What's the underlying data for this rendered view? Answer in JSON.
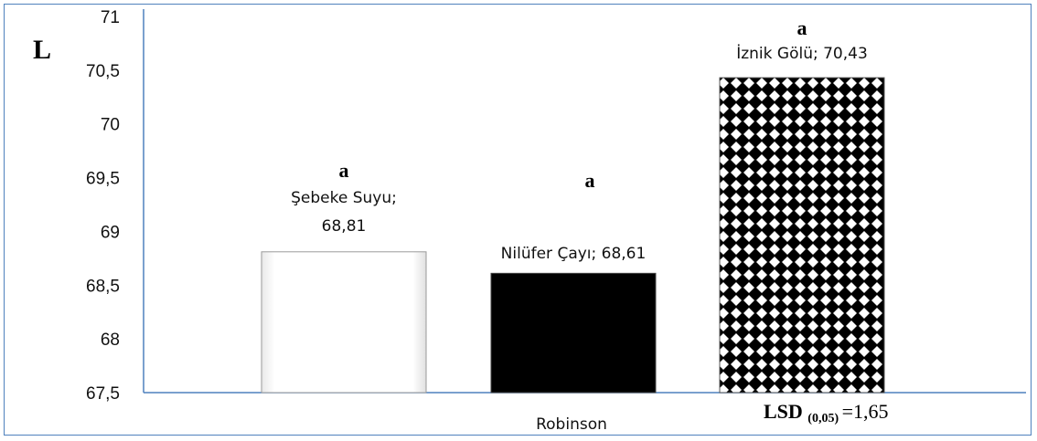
{
  "chart_data": {
    "type": "bar",
    "xlabel": "Robinson",
    "ylabel": "L",
    "ylim": [
      67.5,
      71
    ],
    "yticks": [
      "67,5",
      "68",
      "68,5",
      "69",
      "69,5",
      "70",
      "70,5",
      "71"
    ],
    "grid": false,
    "series": [
      {
        "values": [
          68.81,
          68.61,
          70.43
        ]
      }
    ],
    "categories": [
      "Şebeke Suyu",
      "Nilüfer Çayı",
      "İznik Gölü"
    ],
    "data_labels": [
      [
        "Şebeke Suyu;",
        "68,81"
      ],
      [
        "Nilüfer Çayı; 68,61"
      ],
      [
        "İznik Gölü; 70,43"
      ]
    ],
    "significance_letters": [
      "a",
      "a",
      "a"
    ],
    "fills": [
      "white",
      "black",
      "checker"
    ],
    "annotation": {
      "main": "LSD",
      "sub": "(0,05)",
      "value": "=1,65"
    },
    "colors": {
      "border": "#4f81bd",
      "axis": "#4f81bd",
      "bar_outline": "#9a9a9a"
    }
  }
}
